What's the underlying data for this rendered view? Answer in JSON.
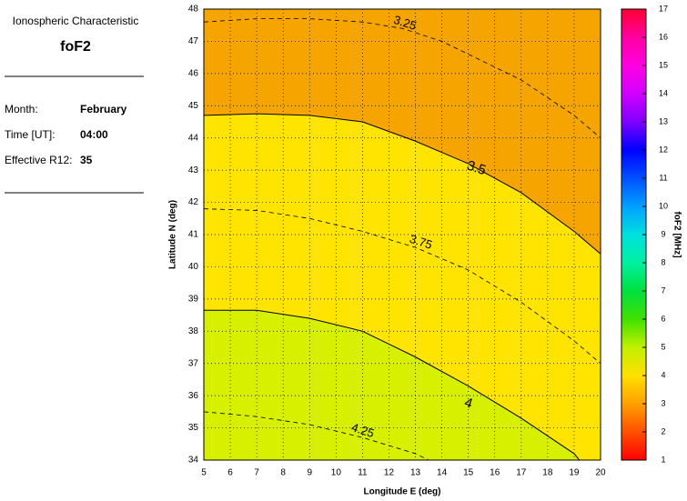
{
  "panel": {
    "heading": "Ionospheric Characteristic",
    "characteristic": "foF2",
    "fields": [
      {
        "label": "Month:",
        "value": "February"
      },
      {
        "label": "Time [UT]:",
        "value": "04:00"
      },
      {
        "label": "Effective R12:",
        "value": "35"
      }
    ]
  },
  "chart_data": {
    "type": "contour",
    "xlabel": "Longitude E (deg)",
    "ylabel": "Latitude N (deg)",
    "xlim": [
      5,
      20
    ],
    "ylim": [
      34,
      48
    ],
    "xticks": [
      5,
      6,
      7,
      8,
      9,
      10,
      11,
      12,
      13,
      14,
      15,
      16,
      17,
      18,
      19,
      20
    ],
    "yticks": [
      34,
      35,
      36,
      37,
      38,
      39,
      40,
      41,
      42,
      43,
      44,
      45,
      46,
      47,
      48
    ],
    "grid": true,
    "region_colors": [
      "#f5a400",
      "#ffe400",
      "#d6f000"
    ],
    "contours": [
      {
        "level": 3.25,
        "style": "dashed",
        "x": [
          5,
          7,
          9,
          11,
          12.5,
          14,
          15,
          17,
          19,
          20
        ],
        "y": [
          47.6,
          47.7,
          47.7,
          47.6,
          47.4,
          47,
          46.6,
          45.8,
          44.7,
          44
        ],
        "label_at": [
          12.6,
          47.55
        ]
      },
      {
        "level": 3.5,
        "style": "solid",
        "x": [
          5,
          7,
          9,
          11,
          13,
          15,
          17,
          19,
          20
        ],
        "y": [
          44.7,
          44.75,
          44.7,
          44.5,
          43.9,
          43.2,
          42.3,
          41.1,
          40.4
        ],
        "label_at": [
          15.3,
          43.05
        ]
      },
      {
        "level": 3.75,
        "style": "dashed",
        "x": [
          5,
          7,
          9,
          11,
          13,
          15,
          17,
          19,
          20
        ],
        "y": [
          41.8,
          41.75,
          41.5,
          41.1,
          40.6,
          39.9,
          38.9,
          37.7,
          37
        ],
        "label_at": [
          13.2,
          40.75
        ]
      },
      {
        "level": 4,
        "style": "solid",
        "x": [
          5,
          7,
          9,
          11,
          13,
          15,
          17,
          19,
          19.2
        ],
        "y": [
          38.65,
          38.65,
          38.4,
          38,
          37.2,
          36.3,
          35.3,
          34.2,
          34
        ],
        "label_at": [
          15,
          35.75
        ]
      },
      {
        "level": 4.25,
        "style": "dashed",
        "x": [
          5,
          7,
          9,
          11,
          13,
          13.5
        ],
        "y": [
          35.5,
          35.35,
          35.1,
          34.7,
          34.2,
          34
        ],
        "label_at": [
          11,
          34.9
        ]
      }
    ],
    "colorbar": {
      "label": "foF2 [MHz]",
      "lim": [
        1,
        17
      ],
      "ticks": [
        1,
        2,
        3,
        4,
        5,
        6,
        7,
        8,
        9,
        10,
        11,
        12,
        13,
        14,
        15,
        16,
        17
      ],
      "colors": [
        "#ff0000",
        "#ff5000",
        "#ffa000",
        "#ffe000",
        "#c0f000",
        "#40e000",
        "#00e040",
        "#00f0a0",
        "#00e0e0",
        "#00a0ff",
        "#0050ff",
        "#0000ff",
        "#8000ff",
        "#d000ff",
        "#ff00e0",
        "#ff00a0",
        "#ff0030"
      ]
    }
  }
}
